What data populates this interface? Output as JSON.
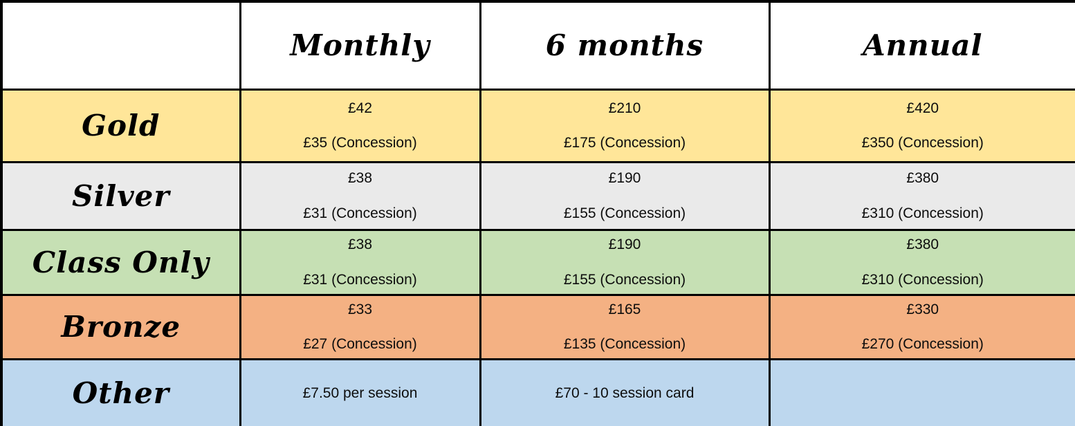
{
  "table": {
    "columns": [
      "",
      "Monthly",
      "6 months",
      "Annual"
    ],
    "rows": [
      {
        "label": "Gold",
        "color": "#FFE699",
        "cells": [
          [
            "£42",
            "£35 (Concession)"
          ],
          [
            "£210",
            "£175 (Concession)"
          ],
          [
            "£420",
            "£350 (Concession)"
          ]
        ]
      },
      {
        "label": "Silver",
        "color": "#EAEAEA",
        "cells": [
          [
            "£38",
            "£31 (Concession)"
          ],
          [
            "£190",
            "£155 (Concession)"
          ],
          [
            "£380",
            "£310 (Concession)"
          ]
        ]
      },
      {
        "label": "Class Only",
        "color": "#C6E0B4",
        "cells": [
          [
            "£38",
            "£31 (Concession)"
          ],
          [
            "£190",
            "£155 (Concession)"
          ],
          [
            "£380",
            "£310 (Concession)"
          ]
        ]
      },
      {
        "label": "Bronze",
        "color": "#F4B183",
        "cells": [
          [
            "£33",
            "£27 (Concession)"
          ],
          [
            "£165",
            "£135 (Concession)"
          ],
          [
            "£330",
            "£270 (Concession)"
          ]
        ]
      },
      {
        "label": "Other",
        "color": "#BDD7EE",
        "cells": [
          [
            "£7.50 per session"
          ],
          [
            "£70 - 10 session card"
          ],
          []
        ]
      }
    ]
  },
  "colors": {
    "border": "#000000",
    "header_background": "#FFFFFF",
    "text": "#0D0D0D"
  }
}
